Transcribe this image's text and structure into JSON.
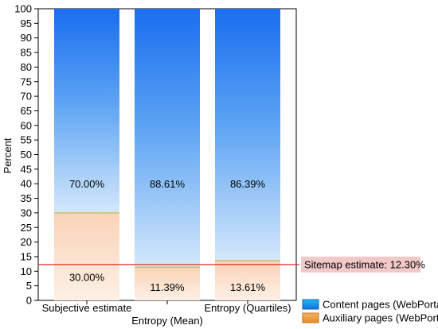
{
  "chart_data": {
    "type": "bar",
    "stacked": true,
    "percent_stacked": true,
    "ylabel": "Percent",
    "xlabel": "",
    "ylim": [
      0,
      100
    ],
    "yticks": [
      0,
      5,
      10,
      15,
      20,
      25,
      30,
      35,
      40,
      45,
      50,
      55,
      60,
      65,
      70,
      75,
      80,
      85,
      90,
      95,
      100
    ],
    "categories": [
      "Subjective estimate",
      "Entropy (Mean)",
      "Entropy (Quartiles)"
    ],
    "series": [
      {
        "name": "Auxiliary pages (WebPortal)",
        "values": [
          30.0,
          11.39,
          13.61
        ],
        "labels": [
          "30.00%",
          "11.39%",
          "13.61%"
        ],
        "color": "#f0a860"
      },
      {
        "name": "Content pages (WebPortal)",
        "values": [
          70.0,
          88.61,
          86.39
        ],
        "labels": [
          "70.00%",
          "88.61%",
          "86.39%"
        ],
        "color": "#1a73e8"
      }
    ],
    "reference_line": {
      "value": 12.3,
      "label": "Sitemap estimate: 12.30%",
      "color": "#e03020"
    },
    "legend": {
      "position": "bottom-right"
    },
    "grid": false
  }
}
